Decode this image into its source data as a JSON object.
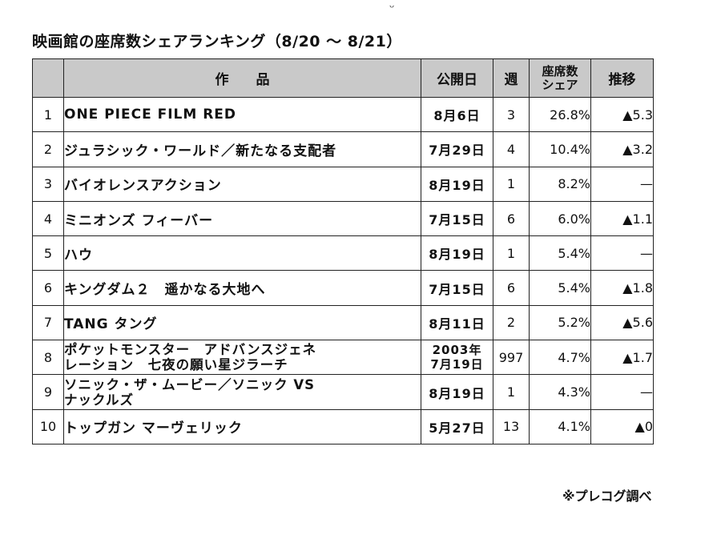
{
  "header": {
    "stray_mark": "ᵕ",
    "title": "映画館の座席数シェアランキング（8/20 〜 8/21）"
  },
  "table": {
    "columns": {
      "rank": "",
      "work": "作　　品",
      "release": "公開日",
      "week": "週",
      "share_line1": "座席数",
      "share_line2": "シェア",
      "trend": "推移"
    },
    "rows": [
      {
        "rank": "1",
        "title": "ONE PIECE FILM RED",
        "release": "8月6日",
        "week": "3",
        "share": "26.8%",
        "trend": "▲5.3"
      },
      {
        "rank": "2",
        "title": "ジュラシック・ワールド／新たなる支配者",
        "release": "7月29日",
        "week": "4",
        "share": "10.4%",
        "trend": "▲3.2"
      },
      {
        "rank": "3",
        "title": "バイオレンスアクション",
        "release": "8月19日",
        "week": "1",
        "share": "8.2%",
        "trend": "—"
      },
      {
        "rank": "4",
        "title": "ミニオンズ フィーバー",
        "release": "7月15日",
        "week": "6",
        "share": "6.0%",
        "trend": "▲1.1"
      },
      {
        "rank": "5",
        "title": "ハウ",
        "release": "8月19日",
        "week": "1",
        "share": "5.4%",
        "trend": "—"
      },
      {
        "rank": "6",
        "title": "キングダム２　遥かなる大地へ",
        "release": "7月15日",
        "week": "6",
        "share": "5.4%",
        "trend": "▲1.8"
      },
      {
        "rank": "7",
        "title": "TANG タング",
        "release": "8月11日",
        "week": "2",
        "share": "5.2%",
        "trend": "▲5.6"
      },
      {
        "rank": "8",
        "title_line1": "ポケットモンスター　アドバンスジェネ",
        "title_line2": "レーション　七夜の願い星ジラーチ",
        "release_line1": "2003年",
        "release_line2": "7月19日",
        "week": "997",
        "share": "4.7%",
        "trend": "▲1.7"
      },
      {
        "rank": "9",
        "title_line1": "ソニック・ザ・ムービー／ソニック VS",
        "title_line2": "ナックルズ",
        "release": "8月19日",
        "week": "1",
        "share": "4.3%",
        "trend": "—"
      },
      {
        "rank": "10",
        "title": "トップガン マーヴェリック",
        "release": "5月27日",
        "week": "13",
        "share": "4.1%",
        "trend": "▲0"
      }
    ]
  },
  "footer": {
    "source": "※プレコグ調べ"
  }
}
